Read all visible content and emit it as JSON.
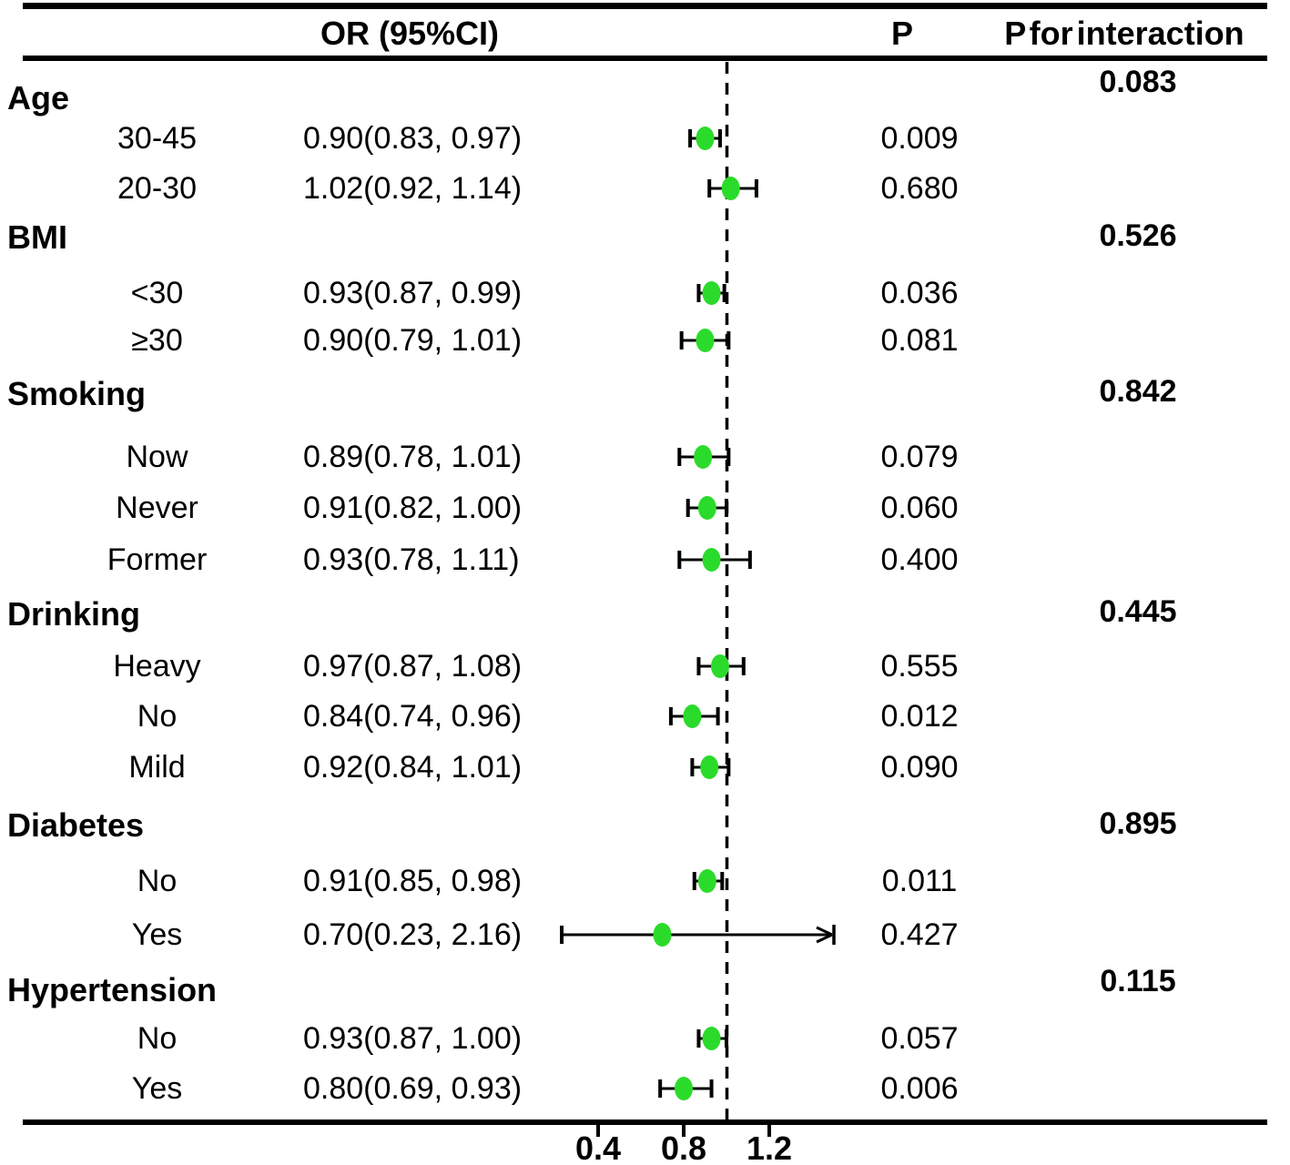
{
  "header": {
    "or_ci": "OR (95%CI)",
    "p": "P",
    "p_interaction": "P for interaction"
  },
  "colors": {
    "marker_green": "#2BDB2B",
    "line_black": "#000000"
  },
  "axis": {
    "ticks": [
      0.4,
      0.8,
      1.2
    ],
    "tick_labels": [
      "0.4",
      "0.8",
      "1.2"
    ],
    "reference_line": 1.0
  },
  "chart_data": {
    "type": "forest",
    "title": "",
    "xlim_drawn": [
      0.23,
      1.5
    ],
    "reference_or": 1.0,
    "groups": [
      {
        "label": "Age",
        "p_interaction": "0.083",
        "items": [
          {
            "label": "30-45",
            "or_text": "0.90(0.83, 0.97)",
            "or": 0.9,
            "lo": 0.83,
            "hi": 0.97,
            "p": "0.009"
          },
          {
            "label": "20-30",
            "or_text": "1.02(0.92, 1.14)",
            "or": 1.02,
            "lo": 0.92,
            "hi": 1.14,
            "p": "0.680"
          }
        ]
      },
      {
        "label": "BMI",
        "p_interaction": "0.526",
        "items": [
          {
            "label": "<30",
            "or_text": "0.93(0.87, 0.99)",
            "or": 0.93,
            "lo": 0.87,
            "hi": 0.99,
            "p": "0.036"
          },
          {
            "label": "≥30",
            "or_text": "0.90(0.79, 1.01)",
            "or": 0.9,
            "lo": 0.79,
            "hi": 1.01,
            "p": "0.081"
          }
        ]
      },
      {
        "label": "Smoking",
        "p_interaction": "0.842",
        "items": [
          {
            "label": "Now",
            "or_text": "0.89(0.78, 1.01)",
            "or": 0.89,
            "lo": 0.78,
            "hi": 1.01,
            "p": "0.079"
          },
          {
            "label": "Never",
            "or_text": "0.91(0.82, 1.00)",
            "or": 0.91,
            "lo": 0.82,
            "hi": 1.0,
            "p": "0.060"
          },
          {
            "label": "Former",
            "or_text": "0.93(0.78, 1.11)",
            "or": 0.93,
            "lo": 0.78,
            "hi": 1.11,
            "p": "0.400"
          }
        ]
      },
      {
        "label": "Drinking",
        "p_interaction": "0.445",
        "items": [
          {
            "label": "Heavy",
            "or_text": "0.97(0.87, 1.08)",
            "or": 0.97,
            "lo": 0.87,
            "hi": 1.08,
            "p": "0.555"
          },
          {
            "label": "No",
            "or_text": "0.84(0.74, 0.96)",
            "or": 0.84,
            "lo": 0.74,
            "hi": 0.96,
            "p": "0.012"
          },
          {
            "label": "Mild",
            "or_text": "0.92(0.84, 1.01)",
            "or": 0.92,
            "lo": 0.84,
            "hi": 1.01,
            "p": "0.090"
          }
        ]
      },
      {
        "label": "Diabetes",
        "p_interaction": "0.895",
        "items": [
          {
            "label": "No",
            "or_text": "0.91(0.85, 0.98)",
            "or": 0.91,
            "lo": 0.85,
            "hi": 0.98,
            "p": "0.011"
          },
          {
            "label": "Yes",
            "or_text": "0.70(0.23, 2.16)",
            "or": 0.7,
            "lo": 0.23,
            "hi": 2.16,
            "p": "0.427",
            "arrow_right": true
          }
        ]
      },
      {
        "label": "Hypertension",
        "p_interaction": "0.115",
        "items": [
          {
            "label": "No",
            "or_text": "0.93(0.87, 1.00)",
            "or": 0.93,
            "lo": 0.87,
            "hi": 1.0,
            "p": "0.057"
          },
          {
            "label": "Yes",
            "or_text": "0.80(0.69, 0.93)",
            "or": 0.8,
            "lo": 0.69,
            "hi": 0.93,
            "p": "0.006"
          }
        ]
      }
    ]
  }
}
